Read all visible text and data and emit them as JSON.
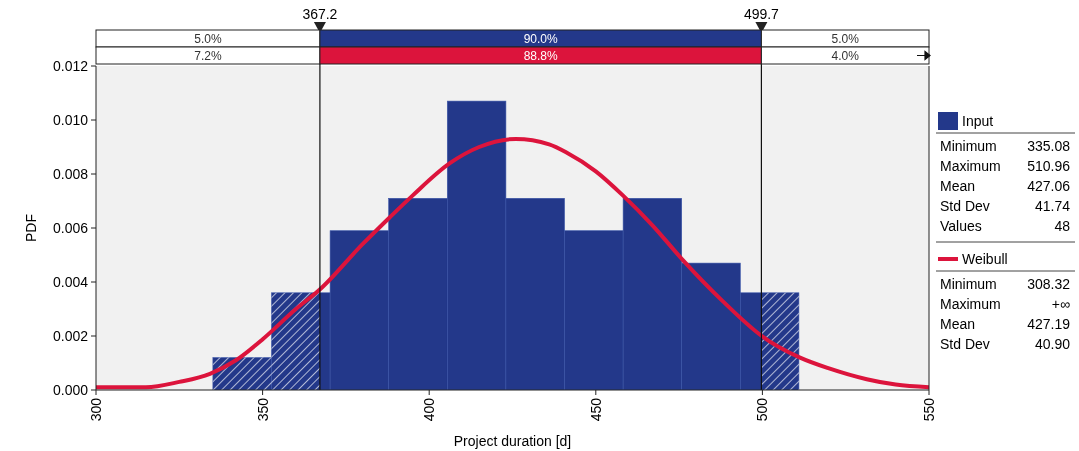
{
  "chart_data": {
    "type": "histogram",
    "xlabel": "Project duration [d]",
    "ylabel": "PDF",
    "bins": [
      335.08,
      352.67,
      370.26,
      387.84,
      405.43,
      423.02,
      440.61,
      458.2,
      475.78,
      493.37,
      510.96
    ],
    "series": [
      {
        "name": "Input",
        "color": "#23388a",
        "values": [
          0.0012,
          0.0036,
          0.0059,
          0.0071,
          0.0107,
          0.0071,
          0.0059,
          0.0071,
          0.0047,
          0.0036
        ]
      },
      {
        "name": "Weibull",
        "type": "line",
        "color": "#dc143c",
        "x": [
          300,
          315,
          325,
          334.2,
          342,
          350.2,
          360,
          367,
          380,
          388.2,
          395,
          406.2,
          415,
          426,
          436,
          441.2,
          450,
          458.2,
          467,
          476.2,
          488,
          499.8,
          511.3,
          520,
          531.3,
          540,
          550
        ],
        "values": [
          0.0001,
          0.0001,
          0.0003,
          0.0006,
          0.0011,
          0.0019,
          0.003,
          0.0037,
          0.0054,
          0.0064,
          0.0072,
          0.0084,
          0.009,
          0.0093,
          0.0091,
          0.0088,
          0.0081,
          0.0072,
          0.0061,
          0.0048,
          0.0033,
          0.002,
          0.0012,
          0.0008,
          0.0004,
          0.0002,
          0.0001
        ]
      }
    ],
    "xlim": [
      300,
      550
    ],
    "xticks": [
      300,
      350,
      400,
      450,
      500,
      550
    ],
    "ylim": [
      0,
      0.012
    ],
    "yticks": [
      {
        "value": 0,
        "label": "0.000"
      },
      {
        "value": 0.002,
        "label": "0.002"
      },
      {
        "value": 0.004,
        "label": "0.004"
      },
      {
        "value": 0.006,
        "label": "0.006"
      },
      {
        "value": 0.008,
        "label": "0.008"
      },
      {
        "value": 0.01,
        "label": "0.010"
      },
      {
        "value": 0.012,
        "label": "0.012"
      }
    ],
    "ref_lines": [
      {
        "axis": "x",
        "value": 367.2,
        "label": "367.2"
      },
      {
        "axis": "x",
        "value": 499.7,
        "label": "499.7"
      }
    ],
    "annotations": [
      "5.0%",
      "90.0%",
      "5.0%",
      "7.2%",
      "88.8%",
      "4.0%",
      "Minimum 335.08",
      "Maximum 510.96",
      "Mean 427.06",
      "Std Dev 41.74",
      "Values 48",
      "Minimum 308.32",
      "Maximum +∞",
      "Mean 427.19",
      "Std Dev 40.90"
    ],
    "legend": "right",
    "grid": false
  }
}
